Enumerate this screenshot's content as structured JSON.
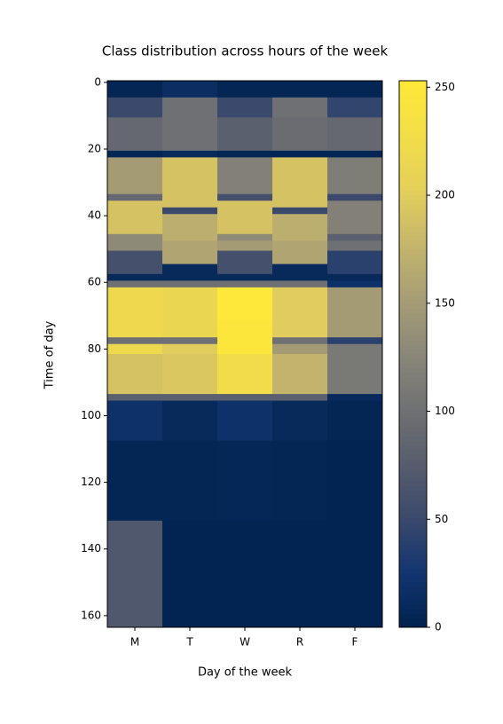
{
  "chart_data": {
    "type": "heatmap",
    "title": "Class distribution across hours of the week",
    "x_label": "Day of the week",
    "y_label": "Time of day",
    "categories": [
      "M",
      "T",
      "W",
      "R",
      "F"
    ],
    "ybins": [
      -0.5,
      4.5,
      10.5,
      20.5,
      22.5,
      33.5,
      35.5,
      37.5,
      39.5,
      45.5,
      47.5,
      50.5,
      54.5,
      57.5,
      59.5,
      61.5,
      71.5,
      76.5,
      78.5,
      81.5,
      93.5,
      95.5,
      107.5,
      131.5,
      163.5
    ],
    "values": [
      [
        5,
        15,
        5,
        5,
        5
      ],
      [
        50,
        100,
        50,
        100,
        45
      ],
      [
        90,
        100,
        80,
        95,
        90
      ],
      [
        5,
        10,
        5,
        5,
        5
      ],
      [
        150,
        190,
        120,
        190,
        115
      ],
      [
        90,
        190,
        60,
        190,
        50
      ],
      [
        190,
        190,
        190,
        190,
        120
      ],
      [
        190,
        50,
        190,
        50,
        120
      ],
      [
        190,
        170,
        190,
        170,
        120
      ],
      [
        130,
        170,
        130,
        170,
        80
      ],
      [
        130,
        160,
        150,
        160,
        100
      ],
      [
        60,
        160,
        60,
        160,
        40
      ],
      [
        60,
        10,
        60,
        10,
        40
      ],
      [
        10,
        10,
        10,
        10,
        10
      ],
      [
        100,
        100,
        100,
        100,
        20
      ],
      [
        220,
        215,
        252,
        200,
        150
      ],
      [
        220,
        215,
        248,
        200,
        150
      ],
      [
        100,
        100,
        248,
        100,
        40
      ],
      [
        220,
        200,
        248,
        150,
        110
      ],
      [
        190,
        195,
        225,
        175,
        110
      ],
      [
        80,
        80,
        80,
        80,
        10
      ],
      [
        20,
        10,
        20,
        10,
        5
      ],
      [
        5,
        5,
        7,
        5,
        3
      ],
      [
        70,
        3,
        3,
        3,
        3
      ]
    ],
    "ylim": [
      163.5,
      -0.5
    ],
    "yticks": [
      0,
      20,
      40,
      60,
      80,
      100,
      120,
      140,
      160
    ],
    "colormap": "cividis",
    "clim": [
      0,
      253
    ],
    "cticks": [
      0,
      50,
      100,
      150,
      200,
      250
    ]
  }
}
